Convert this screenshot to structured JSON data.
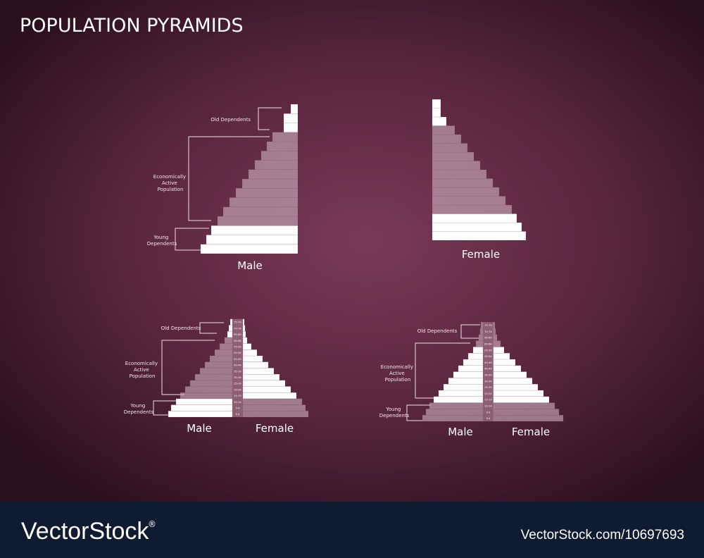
{
  "title": "POPULATION PYRAMIDS",
  "age_groups": [
    "0-4",
    "5-9",
    "10-14",
    "15-19",
    "20-24",
    "25-29",
    "30-34",
    "35-39",
    "40-44",
    "45-49",
    "50-54",
    "55-59",
    "60-64",
    "65-69",
    "70-74",
    "75-79"
  ],
  "pyramids": [
    {
      "labels": [
        "Male"
      ],
      "annotations": {
        "old": "Old Dependents",
        "active": [
          "Economically",
          "Active",
          "Population"
        ],
        "young": [
          "Young",
          "Dependents"
        ]
      }
    },
    {
      "labels": [
        "Female"
      ]
    },
    {
      "labels": [
        "Male",
        "Female"
      ],
      "annotations": {
        "old": "Old Dependents",
        "active": [
          "Economically",
          "Active",
          "Population"
        ],
        "young": [
          "Young",
          "Dependents"
        ]
      }
    },
    {
      "labels": [
        "Male",
        "Female"
      ],
      "annotations": {
        "old": "Old Dependents",
        "active": [
          "Economically",
          "Active",
          "Population"
        ],
        "young": [
          "Young",
          "Dependents"
        ]
      }
    }
  ],
  "footer": {
    "brand": "VectorStock",
    "registered": "®",
    "url": "VectorStock.com/10697693"
  }
}
